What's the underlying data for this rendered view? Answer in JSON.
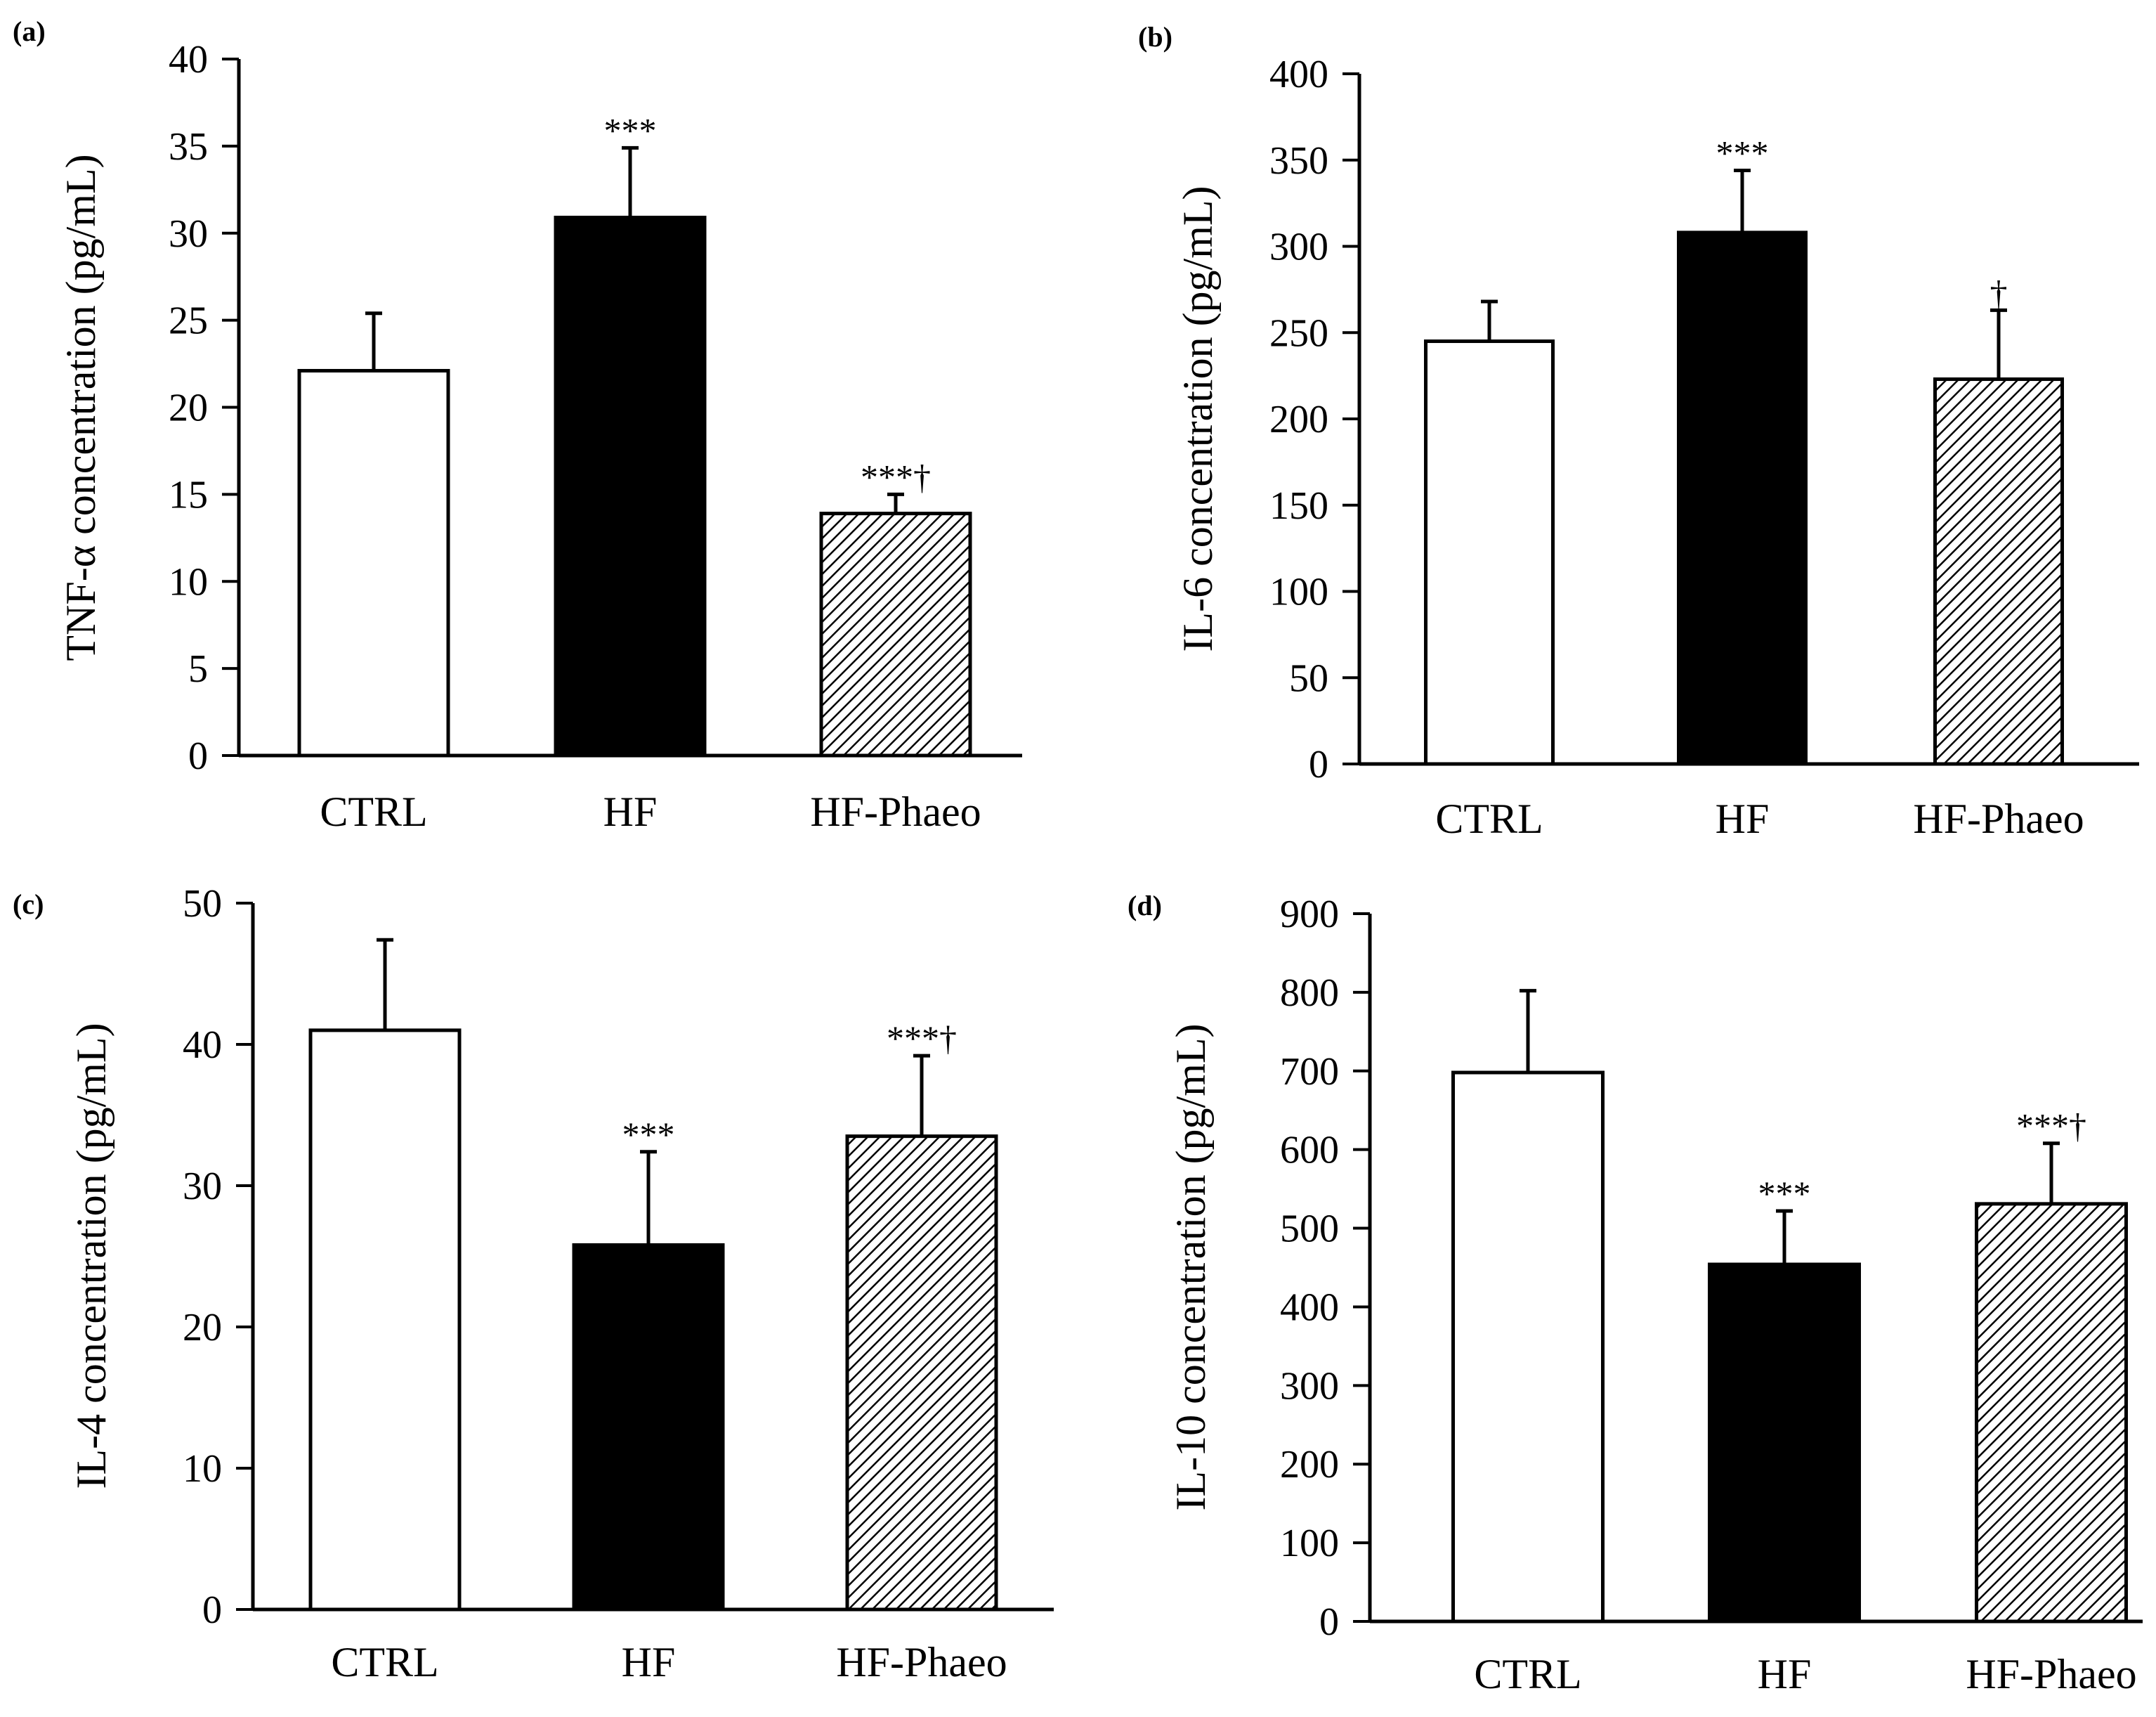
{
  "chart_data": [
    {
      "type": "bar",
      "panel": "(a)",
      "ylabel": "TNF-α concentration (pg/mL)",
      "categories": [
        "CTRL",
        "HF",
        "HF-Phaeo"
      ],
      "values": [
        22.1,
        30.9,
        13.9
      ],
      "errors": [
        3.3,
        4.0,
        1.1
      ],
      "annotations": [
        "",
        "***",
        "***†"
      ],
      "ylim": [
        0,
        40
      ],
      "yticks": [
        0,
        5,
        10,
        15,
        20,
        25,
        30,
        35,
        40
      ]
    },
    {
      "type": "bar",
      "panel": "(b)",
      "ylabel": "IL-6 concentration (pg/mL)",
      "categories": [
        "CTRL",
        "HF",
        "HF-Phaeo"
      ],
      "values": [
        245,
        308,
        223
      ],
      "errors": [
        23,
        36,
        40
      ],
      "annotations": [
        "",
        "***",
        "†"
      ],
      "ylim": [
        0,
        400
      ],
      "yticks": [
        0,
        50,
        100,
        150,
        200,
        250,
        300,
        350,
        400
      ]
    },
    {
      "type": "bar",
      "panel": "(c)",
      "ylabel": "IL-4 concentration (pg/mL)",
      "categories": [
        "CTRL",
        "HF",
        "HF-Phaeo"
      ],
      "values": [
        41.0,
        25.8,
        33.5
      ],
      "errors": [
        6.4,
        6.6,
        5.7
      ],
      "annotations": [
        "",
        "***",
        "***†"
      ],
      "ylim": [
        0,
        50
      ],
      "yticks": [
        0,
        10,
        20,
        30,
        40,
        50
      ]
    },
    {
      "type": "bar",
      "panel": "(d)",
      "ylabel": "IL-10 concentration (pg/mL)",
      "categories": [
        "CTRL",
        "HF",
        "HF-Phaeo"
      ],
      "values": [
        698,
        454,
        531
      ],
      "errors": [
        104,
        68,
        77
      ],
      "annotations": [
        "",
        "***",
        "***†"
      ],
      "ylim": [
        0,
        900
      ],
      "yticks": [
        0,
        100,
        200,
        300,
        400,
        500,
        600,
        700,
        800,
        900
      ]
    }
  ],
  "style": {
    "bar_fills": [
      "#ffffff",
      "#000000",
      "hatch"
    ],
    "ink": "#000000",
    "background": "#ffffff"
  }
}
